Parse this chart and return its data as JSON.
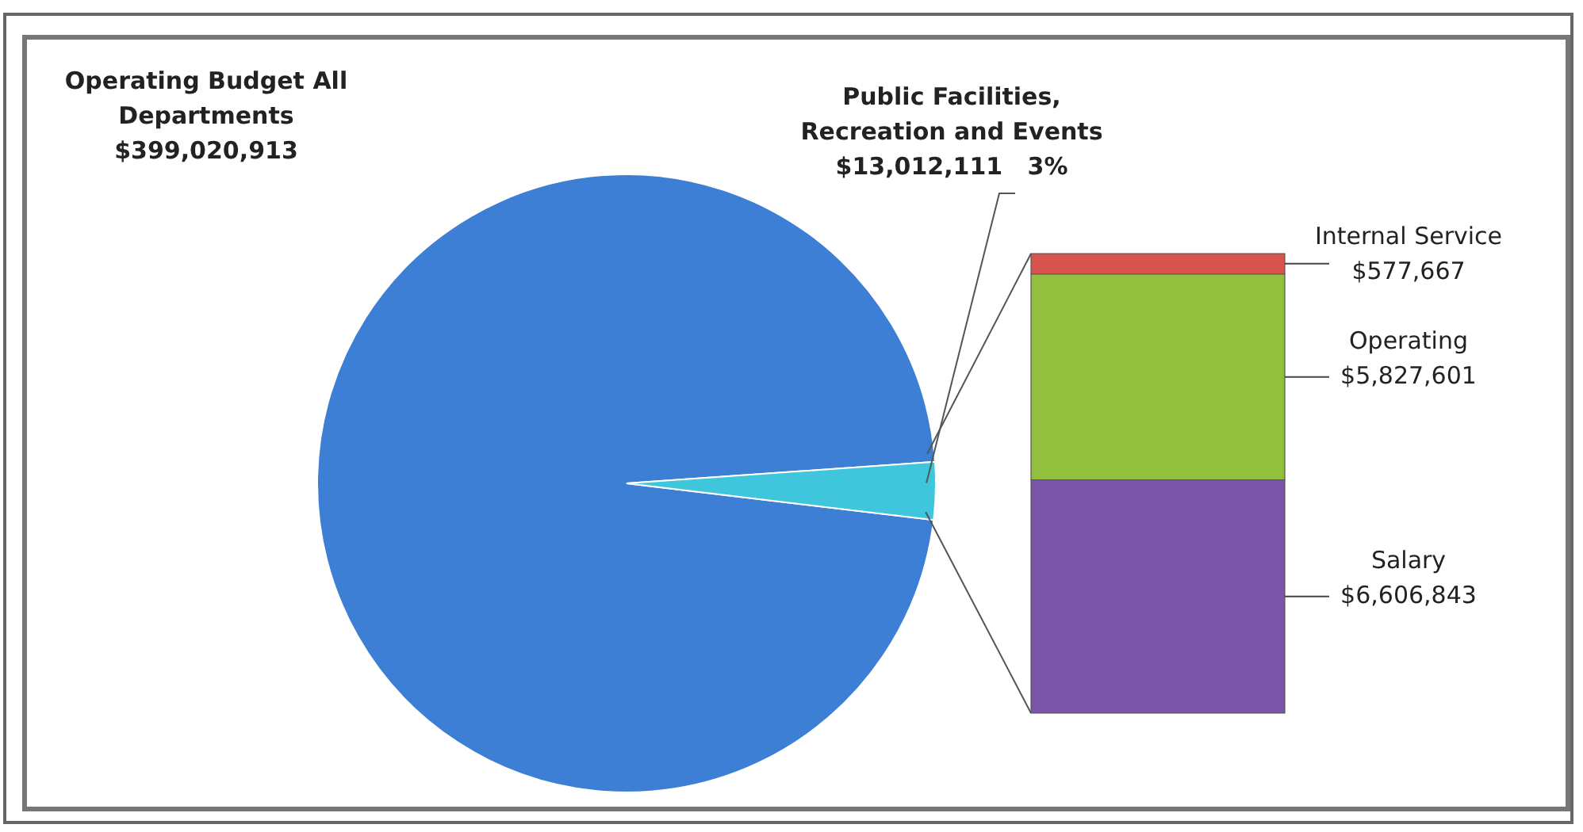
{
  "chart_data": [
    {
      "type": "pie",
      "title": "Operating Budget All Departments",
      "subtitle": "$399,020,913",
      "categories": [
        null,
        "Public Facilities, Recreation and Events"
      ],
      "values": [
        97,
        3
      ],
      "colors": [
        "#3d7fd4",
        "#3fc6dc"
      ],
      "value_labels": [
        null,
        "$13,012,111   3%"
      ],
      "legend": false
    },
    {
      "type": "bar",
      "stacked": true,
      "categories": [
        null
      ],
      "legend": false,
      "series": [
        {
          "name": "Salary",
          "color": "#7b55a8",
          "values": [
            6606843
          ],
          "value_labels": [
            "$6,606,843"
          ]
        },
        {
          "name": "Operating",
          "color": "#92c03e",
          "values": [
            5827601
          ],
          "value_labels": [
            "$5,827,601"
          ]
        },
        {
          "name": "Internal Service",
          "color": "#d9534f",
          "values": [
            577667
          ],
          "value_labels": [
            "$577,667"
          ]
        }
      ]
    }
  ]
}
